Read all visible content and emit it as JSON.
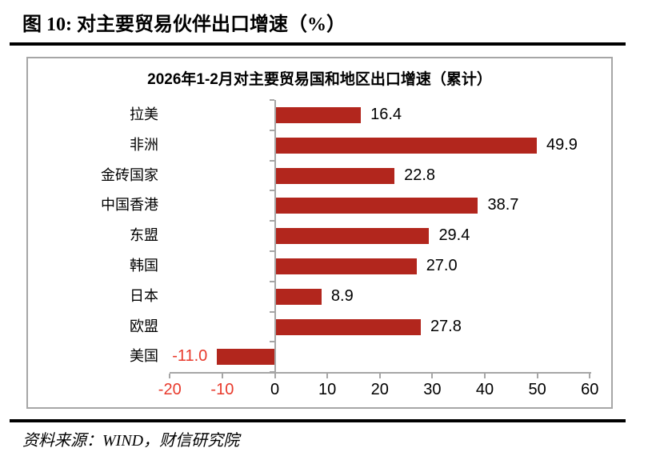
{
  "header": {
    "title": "图 10:  对主要贸易伙伴出口增速（%）"
  },
  "chart": {
    "title": "2026年1-2月对主要贸易国和地区出口增速（累计）"
  },
  "footer": {
    "source": "资料来源：WIND，财信研究院"
  },
  "chart_data": {
    "type": "bar",
    "orientation": "horizontal",
    "title": "2026年1-2月对主要贸易国和地区出口增速（累计）",
    "categories": [
      "拉美",
      "非洲",
      "金砖国家",
      "中国香港",
      "东盟",
      "韩国",
      "日本",
      "欧盟",
      "美国"
    ],
    "values": [
      16.4,
      49.9,
      22.8,
      38.7,
      29.4,
      27.0,
      8.9,
      27.8,
      -11.0
    ],
    "unit": "%",
    "x_ticks": [
      -20,
      -10,
      0,
      10,
      20,
      30,
      40,
      50,
      60
    ],
    "xlim": [
      -20,
      60
    ],
    "grid": false,
    "legend": false,
    "value_labels_shown": true,
    "colors": {
      "bar": "#b2261d",
      "negative_text": "#e8392b",
      "axis": "#a6a6a6",
      "text": "#000000"
    }
  }
}
